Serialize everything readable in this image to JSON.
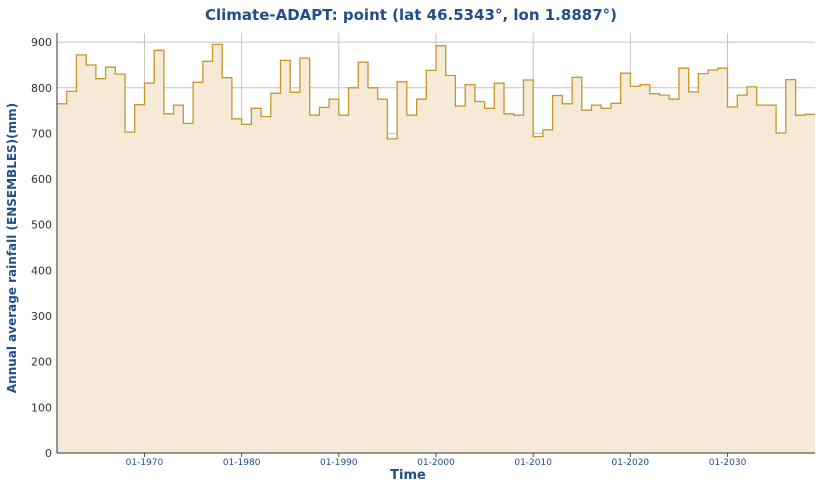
{
  "chart_data": {
    "type": "area",
    "title": "Climate-ADAPT: point (lat 46.5343°, lon 1.8887°)",
    "xlabel": "Time",
    "ylabel": "Annual average rainfall (ENSEMBLES)(mm)",
    "ylim": [
      0,
      920
    ],
    "xlim": [
      1961,
      2039
    ],
    "y_ticks": [
      0,
      100,
      200,
      300,
      400,
      500,
      600,
      700,
      800,
      900
    ],
    "x_ticks": [
      {
        "year": 1970,
        "label": "01-1970"
      },
      {
        "year": 1980,
        "label": "01-1980"
      },
      {
        "year": 1990,
        "label": "01-1990"
      },
      {
        "year": 2000,
        "label": "01-2000"
      },
      {
        "year": 2010,
        "label": "01-2010"
      },
      {
        "year": 2020,
        "label": "01-2020"
      },
      {
        "year": 2030,
        "label": "01-2030"
      }
    ],
    "grid": true,
    "colors": {
      "line": "#c8952c",
      "fill": "#f5ead7",
      "grid": "#c8c4bc"
    },
    "series": [
      {
        "x": [
          1961,
          1962,
          1963,
          1964,
          1965,
          1966,
          1967,
          1968,
          1969,
          1970,
          1971,
          1972,
          1973,
          1974,
          1975,
          1976,
          1977,
          1978,
          1979,
          1980,
          1981,
          1982,
          1983,
          1984,
          1985,
          1986,
          1987,
          1988,
          1989,
          1990,
          1991,
          1992,
          1993,
          1994,
          1995,
          1996,
          1997,
          1998,
          1999,
          2000,
          2001,
          2002,
          2003,
          2004,
          2005,
          2006,
          2007,
          2008,
          2009,
          2010,
          2011,
          2012,
          2013,
          2014,
          2015,
          2016,
          2017,
          2018,
          2019,
          2020,
          2021,
          2022,
          2023,
          2024,
          2025,
          2026,
          2027,
          2028,
          2029,
          2030,
          2031,
          2032,
          2033,
          2034,
          2035,
          2036,
          2037,
          2038
        ],
        "values": [
          765,
          792,
          872,
          850,
          820,
          845,
          830,
          703,
          763,
          810,
          882,
          743,
          762,
          722,
          812,
          858,
          895,
          822,
          732,
          720,
          755,
          737,
          788,
          860,
          790,
          865,
          740,
          757,
          775,
          740,
          800,
          856,
          800,
          775,
          688,
          813,
          740,
          775,
          838,
          892,
          827,
          760,
          807,
          770,
          755,
          810,
          743,
          740,
          817,
          693,
          708,
          783,
          765,
          823,
          751,
          762,
          755,
          766,
          832,
          803,
          807,
          787,
          784,
          775,
          843,
          791,
          831,
          839,
          843,
          758,
          784,
          802,
          762,
          762,
          701,
          818,
          740,
          742
        ]
      }
    ]
  }
}
